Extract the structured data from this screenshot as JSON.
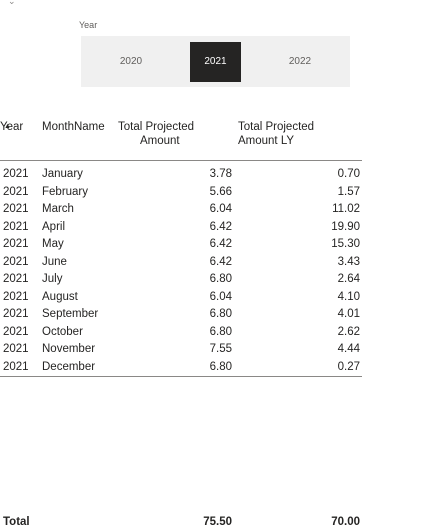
{
  "slicer": {
    "title": "Year",
    "options": [
      "2020",
      "2021",
      "2022"
    ],
    "selected": "2021"
  },
  "table": {
    "headers": {
      "year": "Year",
      "month": "MonthName",
      "amount_line1": "Total Projected",
      "amount_line2": "Amount",
      "ly_line1": "Total Projected",
      "ly_line2": "Amount LY"
    },
    "rows": [
      {
        "year": "2021",
        "month": "January",
        "amount": "3.78",
        "ly": "0.70"
      },
      {
        "year": "2021",
        "month": "February",
        "amount": "5.66",
        "ly": "1.57"
      },
      {
        "year": "2021",
        "month": "March",
        "amount": "6.04",
        "ly": "11.02"
      },
      {
        "year": "2021",
        "month": "April",
        "amount": "6.42",
        "ly": "19.90"
      },
      {
        "year": "2021",
        "month": "May",
        "amount": "6.42",
        "ly": "15.30"
      },
      {
        "year": "2021",
        "month": "June",
        "amount": "6.42",
        "ly": "3.43"
      },
      {
        "year": "2021",
        "month": "July",
        "amount": "6.80",
        "ly": "2.64"
      },
      {
        "year": "2021",
        "month": "August",
        "amount": "6.04",
        "ly": "4.10"
      },
      {
        "year": "2021",
        "month": "September",
        "amount": "6.80",
        "ly": "4.01"
      },
      {
        "year": "2021",
        "month": "October",
        "amount": "6.80",
        "ly": "2.62"
      },
      {
        "year": "2021",
        "month": "November",
        "amount": "7.55",
        "ly": "4.44"
      },
      {
        "year": "2021",
        "month": "December",
        "amount": "6.80",
        "ly": "0.27"
      }
    ],
    "total": {
      "label": "Total",
      "amount": "75.50",
      "ly": "70.00"
    }
  }
}
